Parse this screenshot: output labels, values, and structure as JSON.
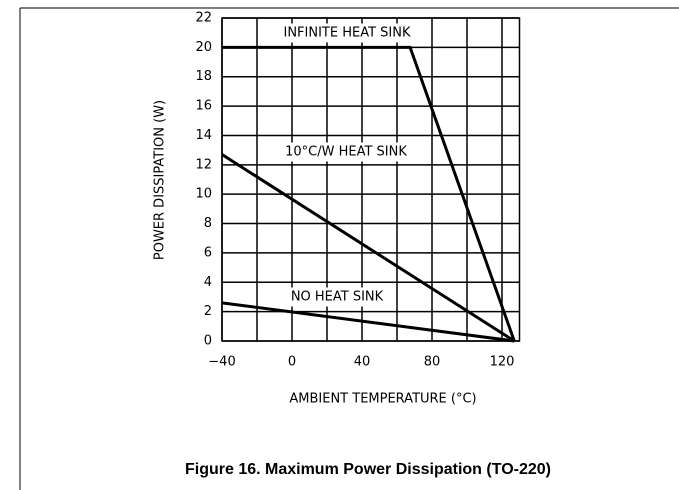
{
  "chart_data": {
    "type": "line",
    "caption": "Figure 16. Maximum Power Dissipation (TO-220)",
    "xlabel": "AMBIENT TEMPERATURE (°C)",
    "ylabel": "POWER DISSIPATION (W)",
    "xlim": [
      -40,
      130
    ],
    "xticks": [
      {
        "value": -40,
        "label": "−40"
      },
      0,
      40,
      80,
      120
    ],
    "xminor": [
      -20,
      20,
      60,
      100
    ],
    "ylim": [
      0,
      22
    ],
    "yticks": [
      0,
      2,
      4,
      6,
      8,
      10,
      12,
      14,
      16,
      18,
      20,
      22
    ],
    "grid": true,
    "series": [
      {
        "name": "INFINITE HEAT SINK",
        "color": "#000000",
        "x": [
          -40,
          67.5,
          127
        ],
        "values": [
          20,
          20,
          0
        ]
      },
      {
        "name": "10°C/W HEAT SINK",
        "color": "#000000",
        "x": [
          -40,
          127
        ],
        "values": [
          12.7,
          0
        ]
      },
      {
        "name": "NO HEAT SINK",
        "color": "#000000",
        "x": [
          -40,
          127
        ],
        "values": [
          2.6,
          0
        ]
      }
    ]
  }
}
